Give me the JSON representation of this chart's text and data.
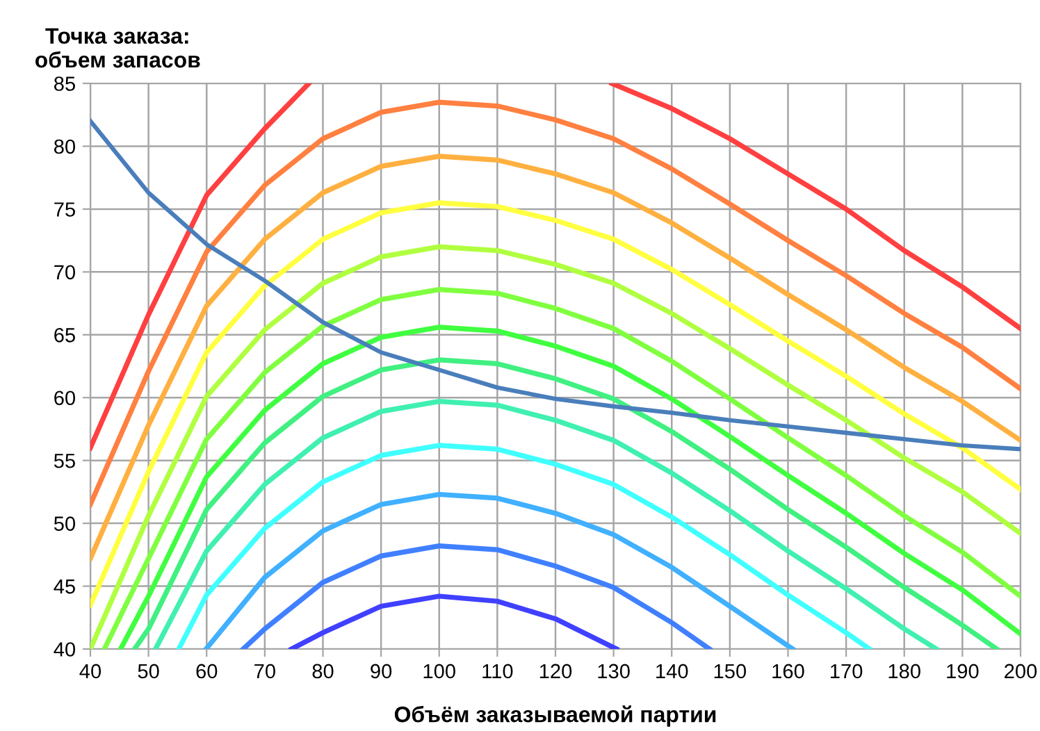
{
  "chart_data": {
    "type": "line",
    "xlabel": "Объём заказываемой партии",
    "ylabel": "Точка заказа:\nобъем запасов",
    "xlim": [
      40,
      200
    ],
    "xticks": [
      40,
      50,
      60,
      70,
      80,
      90,
      100,
      110,
      120,
      130,
      140,
      150,
      160,
      170,
      180,
      190,
      200
    ],
    "ylim": [
      40,
      85
    ],
    "yticks": [
      40,
      45,
      50,
      55,
      60,
      65,
      70,
      75,
      80,
      85
    ],
    "grid": true,
    "legend": false,
    "marker": "none",
    "line_style": "solid",
    "series": [
      {
        "color": "#ff4040",
        "x": [
          40,
          50,
          60,
          70,
          77.6,
          100,
          129.7,
          140,
          150,
          160,
          170,
          180,
          190,
          200
        ],
        "values": [
          56,
          66.6,
          76.1,
          81.4,
          85,
          null,
          85,
          83.0,
          80.6,
          77.8,
          75.0,
          71.7,
          68.8,
          65.5
        ]
      },
      {
        "color": "#ff8040",
        "x": [
          40,
          50,
          60,
          70,
          80,
          90,
          100,
          110,
          120,
          130,
          140,
          150,
          160,
          170,
          180,
          190,
          200
        ],
        "values": [
          51.5,
          62.1,
          71.6,
          76.9,
          80.6,
          82.7,
          83.5,
          83.2,
          82.1,
          80.6,
          78.2,
          75.4,
          72.5,
          69.7,
          66.7,
          64.0,
          60.7
        ]
      },
      {
        "color": "#ffb040",
        "x": [
          40,
          50,
          60,
          70,
          80,
          90,
          100,
          110,
          120,
          130,
          140,
          150,
          160,
          170,
          180,
          190,
          200
        ],
        "values": [
          47.2,
          57.8,
          67.3,
          72.6,
          76.3,
          78.4,
          79.2,
          78.9,
          77.8,
          76.3,
          73.9,
          71.1,
          68.2,
          65.4,
          62.4,
          59.7,
          56.6
        ]
      },
      {
        "color": "#ffff40",
        "x": [
          40,
          50,
          60,
          70,
          80,
          90,
          100,
          110,
          120,
          130,
          140,
          150,
          160,
          170,
          180,
          190,
          200
        ],
        "values": [
          43.5,
          54.1,
          63.6,
          68.9,
          72.6,
          74.7,
          75.5,
          75.2,
          74.1,
          72.6,
          70.2,
          67.4,
          64.5,
          61.7,
          58.7,
          56.0,
          52.7
        ]
      },
      {
        "color": "#b0ff40",
        "x": [
          40,
          50,
          60,
          70,
          80,
          90,
          100,
          110,
          120,
          130,
          140,
          150,
          160,
          170,
          180,
          190,
          200
        ],
        "values": [
          40.0,
          50.6,
          60.1,
          65.4,
          69.1,
          71.2,
          72.0,
          71.7,
          70.6,
          69.1,
          66.7,
          63.9,
          61.0,
          58.2,
          55.2,
          52.5,
          49.2
        ]
      },
      {
        "color": "#80ff40",
        "x": [
          42.4,
          50,
          60,
          70,
          80,
          90,
          100,
          110,
          120,
          130,
          140,
          150,
          160,
          170,
          180,
          190,
          200
        ],
        "values": [
          40,
          47.2,
          56.7,
          62.0,
          65.7,
          67.8,
          68.6,
          68.3,
          67.1,
          65.5,
          62.9,
          59.9,
          56.8,
          53.8,
          50.6,
          47.7,
          44.2
        ]
      },
      {
        "color": "#40ff40",
        "x": [
          45.2,
          50,
          60,
          70,
          80,
          90,
          100,
          110,
          120,
          130,
          140,
          150,
          160,
          170,
          180,
          190,
          200
        ],
        "values": [
          40,
          44.2,
          53.7,
          59.0,
          62.7,
          64.8,
          65.6,
          65.3,
          64.1,
          62.5,
          59.9,
          56.9,
          53.8,
          50.8,
          47.6,
          44.7,
          41.2
        ]
      },
      {
        "color": "#40f080",
        "x": [
          47.6,
          50,
          60,
          70,
          80,
          90,
          100,
          110,
          120,
          130,
          140,
          150,
          160,
          170,
          180,
          190,
          195.9
        ],
        "values": [
          40,
          41.6,
          51.1,
          56.4,
          60.1,
          62.2,
          63.0,
          62.7,
          61.5,
          59.9,
          57.3,
          54.3,
          51.1,
          48.1,
          44.9,
          41.9,
          40
        ]
      },
      {
        "color": "#40f0b0",
        "x": [
          51.2,
          60,
          70,
          80,
          90,
          100,
          110,
          120,
          130,
          140,
          150,
          160,
          170,
          180,
          185.5
        ],
        "values": [
          40,
          47.8,
          53.1,
          56.8,
          58.9,
          59.7,
          59.4,
          58.2,
          56.6,
          54.0,
          51.0,
          47.8,
          44.8,
          41.6,
          40
        ]
      },
      {
        "color": "#40ffff",
        "x": [
          55.2,
          60,
          70,
          80,
          90,
          100,
          110,
          120,
          130,
          140,
          150,
          160,
          170,
          174
        ],
        "values": [
          40,
          44.3,
          49.6,
          53.3,
          55.4,
          56.2,
          55.9,
          54.7,
          53.1,
          50.5,
          47.5,
          44.3,
          41.3,
          40
        ]
      },
      {
        "color": "#40b0ff",
        "x": [
          59.9,
          70,
          80,
          90,
          100,
          110,
          120,
          130,
          140,
          150,
          160.8
        ],
        "values": [
          40,
          45.7,
          49.4,
          51.5,
          52.3,
          52.0,
          50.8,
          49.1,
          46.5,
          43.4,
          40
        ]
      },
      {
        "color": "#4080ff",
        "x": [
          66.3,
          70,
          80,
          90,
          100,
          110,
          120,
          130,
          140,
          146.5
        ],
        "values": [
          40,
          41.6,
          45.3,
          47.4,
          48.2,
          47.9,
          46.6,
          44.9,
          42.1,
          40
        ]
      },
      {
        "color": "#4040ff",
        "x": [
          74.6,
          80,
          90,
          100,
          110,
          120,
          130.5
        ],
        "values": [
          40,
          41.3,
          43.4,
          44.2,
          43.8,
          42.4,
          40
        ]
      },
      {
        "color": "#4a7ebb",
        "x": [
          40,
          50,
          60,
          70,
          80,
          90,
          100,
          110,
          120,
          130,
          140,
          150,
          160,
          170,
          180,
          190,
          200
        ],
        "values": [
          82.0,
          76.3,
          72.2,
          69.3,
          66.0,
          63.6,
          62.2,
          60.8,
          59.9,
          59.3,
          58.8,
          58.2,
          57.7,
          57.2,
          56.7,
          56.2,
          55.9
        ]
      }
    ]
  }
}
